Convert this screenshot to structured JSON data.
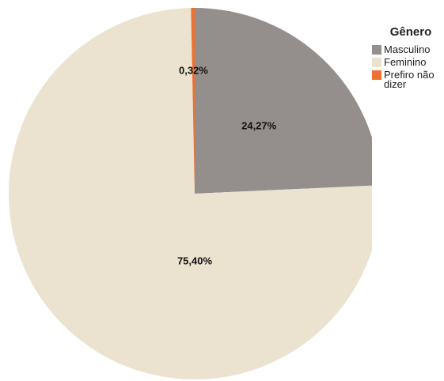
{
  "chart_data": {
    "type": "pie",
    "legend_title": "Gênero",
    "categories": [
      "Masculino",
      "Feminino",
      "Prefiro não dizer"
    ],
    "values": [
      24.27,
      75.4,
      0.32
    ],
    "value_labels": [
      "24,27%",
      "75,40%",
      "0,32%"
    ],
    "colors": [
      "#948f8c",
      "#ebe3cf",
      "#f07030"
    ],
    "legend": "top-right"
  }
}
